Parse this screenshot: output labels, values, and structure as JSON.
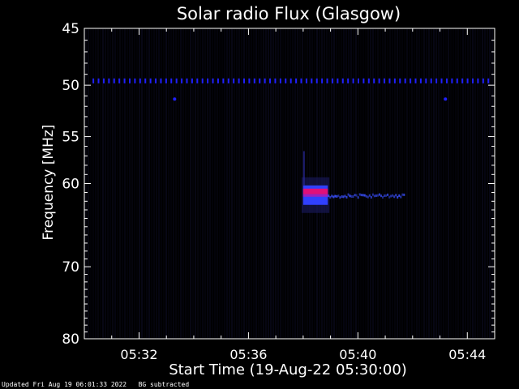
{
  "chart_data": {
    "type": "heatmap",
    "title": "Solar radio Flux (Glasgow)",
    "xlabel": "Start Time (19-Aug-22 05:30:00)",
    "ylabel": "Frequency [MHz]",
    "x_range_minutes": [
      0,
      15
    ],
    "ylim": [
      45,
      80
    ],
    "y_scale": "log",
    "x_ticks": [
      {
        "minute": 2,
        "label": "05:32"
      },
      {
        "minute": 6,
        "label": "05:36"
      },
      {
        "minute": 10,
        "label": "05:40"
      },
      {
        "minute": 14,
        "label": "05:44"
      }
    ],
    "y_ticks": [
      {
        "value": 45,
        "label": "45"
      },
      {
        "value": 50,
        "label": "50"
      },
      {
        "value": 55,
        "label": "55"
      },
      {
        "value": 60,
        "label": "60"
      },
      {
        "value": 70,
        "label": "70"
      },
      {
        "value": 80,
        "label": "80"
      }
    ],
    "background_color": "#000000",
    "features": [
      {
        "name": "interference-line",
        "freq_mhz": 49.6,
        "t_start_min": 0.3,
        "t_end_min": 14.9,
        "color": "#2020ff"
      },
      {
        "name": "burst-core",
        "freq_mhz": 61.3,
        "t_start_min": 8.0,
        "t_end_min": 8.9,
        "color": "#e0107a"
      },
      {
        "name": "burst-tail",
        "freq_mhz": 61.4,
        "t_start_min": 8.9,
        "t_end_min": 11.7,
        "color": "#3a50ff"
      },
      {
        "name": "dot-1",
        "freq_mhz": 51.3,
        "t_start_min": 3.3,
        "t_end_min": 3.3,
        "color": "#2020ff"
      },
      {
        "name": "dot-2",
        "freq_mhz": 51.3,
        "t_start_min": 13.2,
        "t_end_min": 13.2,
        "color": "#2020ff"
      }
    ]
  },
  "footer": {
    "updated": "Updated Fri Aug 19 06:01:33 2022",
    "bg_note": "BG subtracted"
  }
}
